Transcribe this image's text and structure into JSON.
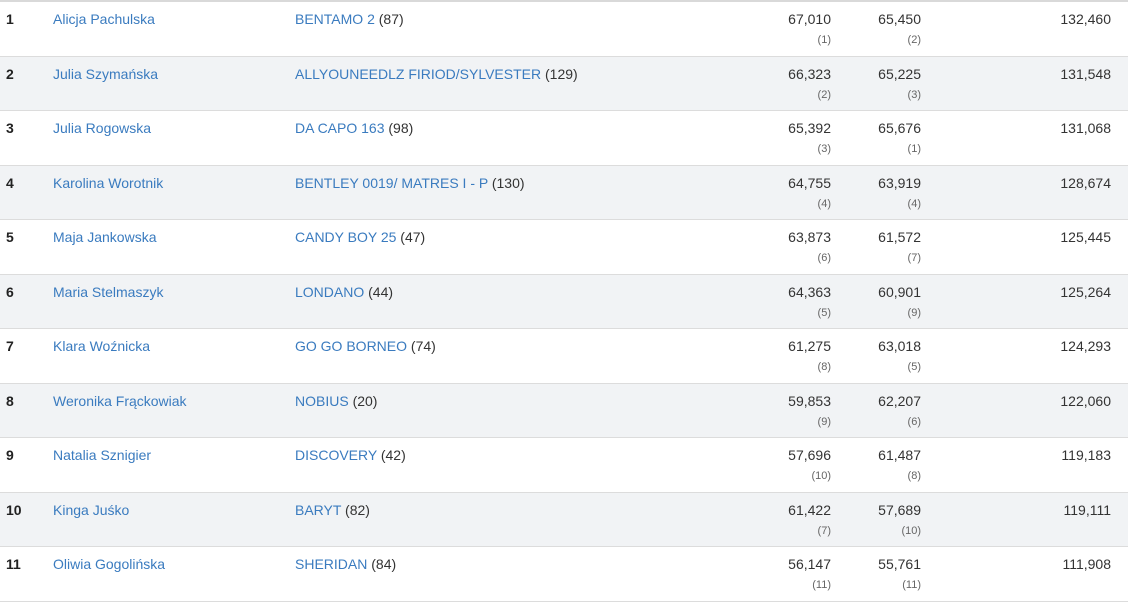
{
  "results": [
    {
      "rank": "1",
      "rider": "Alicja Pachulska",
      "horse": "BENTAMO 2",
      "horse_num": " (87)",
      "score1": "67,010",
      "pos1": "(1)",
      "score2": "65,450",
      "pos2": "(2)",
      "total": "132,460"
    },
    {
      "rank": "2",
      "rider": "Julia Szymańska",
      "horse": "ALLYOUNEEDLZ FIRIOD/SYLVESTER",
      "horse_num": " (129)",
      "score1": "66,323",
      "pos1": "(2)",
      "score2": "65,225",
      "pos2": "(3)",
      "total": "131,548"
    },
    {
      "rank": "3",
      "rider": "Julia Rogowska",
      "horse": "DA CAPO 163",
      "horse_num": " (98)",
      "score1": "65,392",
      "pos1": "(3)",
      "score2": "65,676",
      "pos2": "(1)",
      "total": "131,068"
    },
    {
      "rank": "4",
      "rider": "Karolina Worotnik",
      "horse": "BENTLEY 0019/ MATRES I - P",
      "horse_num": " (130)",
      "score1": "64,755",
      "pos1": "(4)",
      "score2": "63,919",
      "pos2": "(4)",
      "total": "128,674"
    },
    {
      "rank": "5",
      "rider": "Maja Jankowska",
      "horse": "CANDY BOY 25",
      "horse_num": " (47)",
      "score1": "63,873",
      "pos1": "(6)",
      "score2": "61,572",
      "pos2": "(7)",
      "total": "125,445"
    },
    {
      "rank": "6",
      "rider": "Maria Stelmaszyk",
      "horse": "LONDANO",
      "horse_num": " (44)",
      "score1": "64,363",
      "pos1": "(5)",
      "score2": "60,901",
      "pos2": "(9)",
      "total": "125,264"
    },
    {
      "rank": "7",
      "rider": "Klara Woźnicka",
      "horse": "GO GO BORNEO",
      "horse_num": " (74)",
      "score1": "61,275",
      "pos1": "(8)",
      "score2": "63,018",
      "pos2": "(5)",
      "total": "124,293"
    },
    {
      "rank": "8",
      "rider": "Weronika Frąckowiak",
      "horse": "NOBIUS",
      "horse_num": " (20)",
      "score1": "59,853",
      "pos1": "(9)",
      "score2": "62,207",
      "pos2": "(6)",
      "total": "122,060"
    },
    {
      "rank": "9",
      "rider": "Natalia Sznigier",
      "horse": "DISCOVERY",
      "horse_num": " (42)",
      "score1": "57,696",
      "pos1": "(10)",
      "score2": "61,487",
      "pos2": "(8)",
      "total": "119,183"
    },
    {
      "rank": "10",
      "rider": "Kinga Juśko",
      "horse": "BARYT",
      "horse_num": " (82)",
      "score1": "61,422",
      "pos1": "(7)",
      "score2": "57,689",
      "pos2": "(10)",
      "total": "119,111"
    },
    {
      "rank": "11",
      "rider": "Oliwia Gogolińska",
      "horse": "SHERIDAN",
      "horse_num": " (84)",
      "score1": "56,147",
      "pos1": "(11)",
      "score2": "55,761",
      "pos2": "(11)",
      "total": "111,908"
    }
  ],
  "colors": {
    "link": "#3a7bbf",
    "row_alt": "#f1f3f5",
    "border": "#dcdcdc"
  }
}
